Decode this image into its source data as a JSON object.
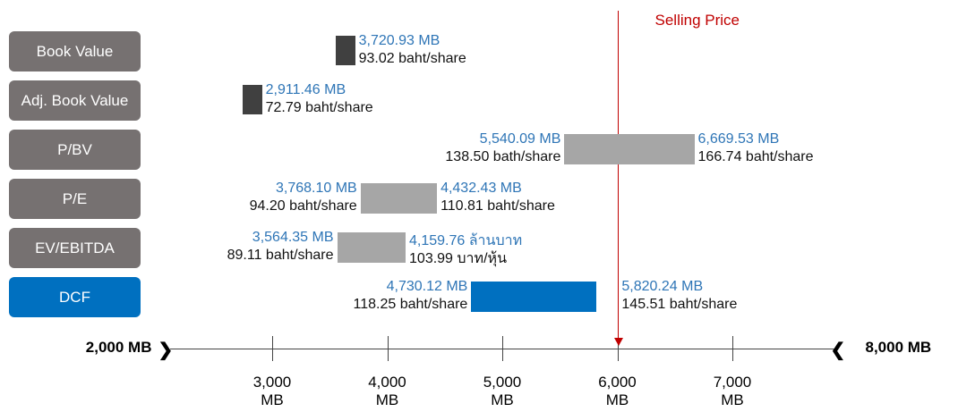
{
  "chart_data": {
    "type": "range",
    "categories": [
      "Book Value",
      "Adj. Book Value",
      "P/BV",
      "P/E",
      "EV/EBITDA",
      "DCF"
    ],
    "category_colors": [
      "#767171",
      "#767171",
      "#767171",
      "#767171",
      "#767171",
      "#0070c0"
    ],
    "bar_colors": [
      "#404040",
      "#404040",
      "#a6a6a6",
      "#a6a6a6",
      "#a6a6a6",
      "#0070c0"
    ],
    "low": [
      3720.93,
      2911.46,
      5540.09,
      3768.1,
      3564.35,
      4730.12
    ],
    "low_labels": [
      "3,720.93 MB",
      "2,911.46 MB",
      "5,540.09 MB",
      "3,768.10 MB",
      "3,564.35 MB",
      "4,730.12 MB"
    ],
    "low_share_labels": [
      "93.02 baht/share",
      "72.79 baht/share",
      "138.50 bath/share",
      "94.20 baht/share",
      "89.11 baht/share",
      "118.25 baht/share"
    ],
    "high": [
      null,
      null,
      6669.53,
      4432.43,
      4159.76,
      5820.24
    ],
    "high_labels": [
      null,
      null,
      "6,669.53 MB",
      "4,432.43 MB",
      "4,159.76 ล้านบาท",
      "5,820.24 MB"
    ],
    "high_share_labels": [
      null,
      null,
      "166.74 baht/share",
      "110.81 baht/share",
      "103.99 บาท/หุ้น",
      "145.51 baht/share"
    ],
    "xlim": [
      2000,
      8000
    ],
    "xlim_labels": [
      "2,000 MB",
      "8,000 MB"
    ],
    "xticks": [
      {
        "value": 3000,
        "label": "3,000 MB"
      },
      {
        "value": 4000,
        "label": "4,000 MB"
      },
      {
        "value": 5000,
        "label": "5,000 MB"
      },
      {
        "value": 6000,
        "label": "6,000 MB"
      },
      {
        "value": 7000,
        "label": "7,000 MB"
      }
    ],
    "reference_line": {
      "value": 6000,
      "label": "Selling Price",
      "color": "#c00000"
    }
  }
}
